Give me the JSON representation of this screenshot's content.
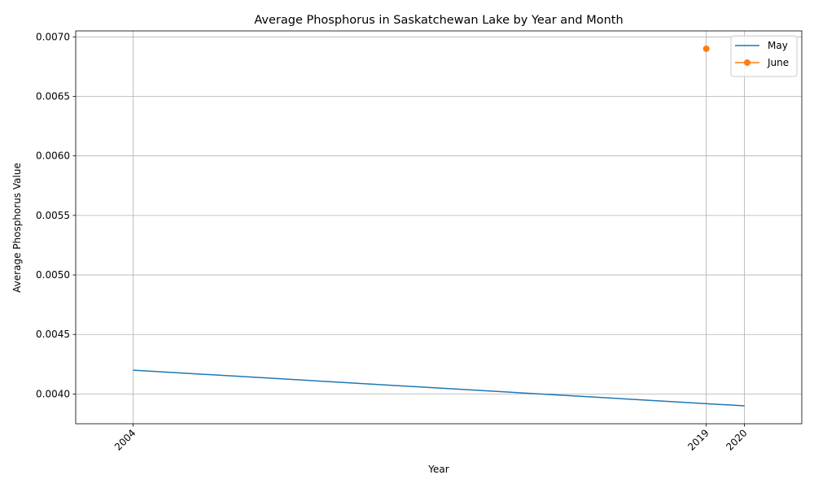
{
  "chart_data": {
    "type": "line",
    "title": "Average Phosphorus in Saskatchewan Lake by Year and Month",
    "xlabel": "Year",
    "ylabel": "Average Phosphorus Value",
    "xlim": [
      2002.5,
      2021.5
    ],
    "ylim": [
      0.00375,
      0.00705
    ],
    "x_ticks": [
      2004,
      2019,
      2020
    ],
    "x_tick_labels": [
      "2004",
      "2019",
      "2020"
    ],
    "y_ticks": [
      0.004,
      0.0045,
      0.005,
      0.0055,
      0.006,
      0.0065,
      0.007
    ],
    "y_tick_labels": [
      "0.0040",
      "0.0045",
      "0.0050",
      "0.0055",
      "0.0060",
      "0.0065",
      "0.0070"
    ],
    "grid": true,
    "legend_position": "top-right",
    "series": [
      {
        "name": "May",
        "color": "#1f77b4",
        "marker": "none",
        "x": [
          2004,
          2020
        ],
        "y": [
          0.0042,
          0.0039
        ]
      },
      {
        "name": "June",
        "color": "#ff7f0e",
        "marker": "circle",
        "x": [
          2019
        ],
        "y": [
          0.0069
        ]
      }
    ]
  }
}
